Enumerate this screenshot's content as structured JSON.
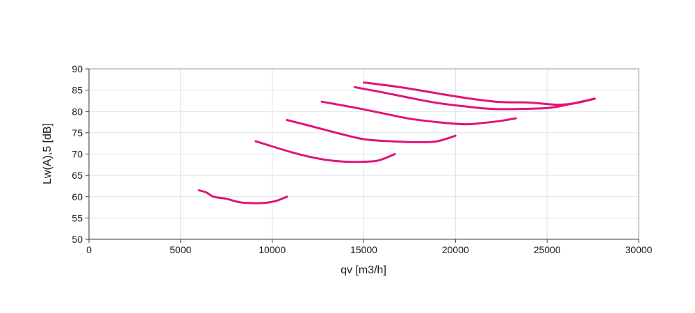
{
  "chart_data": {
    "type": "line",
    "title": "",
    "xlabel": "qv [m3/h]",
    "ylabel": "Lw(A),5 [dB]",
    "xlim": [
      0,
      30000
    ],
    "ylim": [
      50,
      90
    ],
    "x_ticks": [
      "0",
      "5000",
      "10000",
      "15000",
      "20000",
      "25000",
      "30000"
    ],
    "y_ticks": [
      "50",
      "55",
      "60",
      "65",
      "70",
      "75",
      "80",
      "85",
      "90"
    ],
    "grid": true,
    "line_color": "#e2137a",
    "series": [
      {
        "x": [
          6000,
          6400,
          6800,
          7500,
          8200,
          8800,
          9500,
          10200,
          10800
        ],
        "y": [
          61.5,
          61,
          60,
          59.5,
          58.7,
          58.5,
          58.5,
          59,
          60
        ]
      },
      {
        "x": [
          9100,
          10000,
          11000,
          12000,
          13000,
          14000,
          15000,
          15800,
          16700
        ],
        "y": [
          73,
          71.8,
          70.5,
          69.4,
          68.6,
          68.2,
          68.2,
          68.5,
          70
        ]
      },
      {
        "x": [
          10800,
          12000,
          13500,
          15000,
          16500,
          18000,
          19000,
          20000
        ],
        "y": [
          78,
          76.7,
          75,
          73.5,
          73,
          72.8,
          73,
          74.3
        ]
      },
      {
        "x": [
          12700,
          14500,
          16000,
          17500,
          19000,
          20500,
          21500,
          22500,
          23300
        ],
        "y": [
          82.3,
          80.9,
          79.6,
          78.3,
          77.5,
          77,
          77.3,
          77.8,
          78.4
        ]
      },
      {
        "x": [
          14500,
          16000,
          17500,
          19000,
          20500,
          22000,
          23500,
          25000,
          26000,
          27600
        ],
        "y": [
          85.7,
          84.5,
          83.2,
          82,
          81.2,
          80.6,
          80.6,
          80.8,
          81.5,
          83
        ]
      },
      {
        "x": [
          15000,
          16500,
          18000,
          19500,
          21000,
          22500,
          24000,
          25500,
          26500,
          27600
        ],
        "y": [
          86.8,
          86,
          85,
          83.9,
          82.9,
          82.2,
          82.1,
          81.6,
          81.9,
          83
        ]
      }
    ]
  }
}
